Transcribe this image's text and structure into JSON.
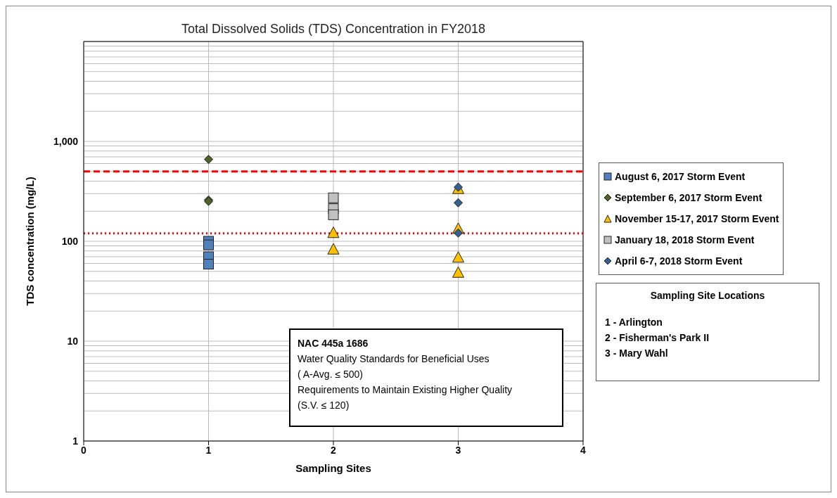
{
  "chart_data": {
    "type": "scatter",
    "title": "Total Dissolved Solids (TDS) Concentration in FY2018",
    "xlabel": "Sampling Sites",
    "ylabel": "TDS concentration (mg/L)",
    "xlim": [
      0,
      4
    ],
    "xticks": [
      0,
      1,
      2,
      3,
      4
    ],
    "ylim": [
      1,
      10000
    ],
    "log": "y",
    "yticks": [
      1,
      {
        "value": 2,
        "label": null
      },
      {
        "value": 3,
        "label": null
      },
      {
        "value": 4,
        "label": null
      },
      {
        "value": 5,
        "label": null
      },
      {
        "value": 6,
        "label": null
      },
      {
        "value": 7,
        "label": null
      },
      {
        "value": 8,
        "label": null
      },
      {
        "value": 9,
        "label": null
      },
      10,
      {
        "value": 20,
        "label": null
      },
      {
        "value": 30,
        "label": null
      },
      {
        "value": 40,
        "label": null
      },
      {
        "value": 50,
        "label": null
      },
      {
        "value": 60,
        "label": null
      },
      {
        "value": 70,
        "label": null
      },
      {
        "value": 80,
        "label": null
      },
      {
        "value": 90,
        "label": null
      },
      100,
      {
        "value": 200,
        "label": null
      },
      {
        "value": 300,
        "label": null
      },
      {
        "value": 400,
        "label": null
      },
      {
        "value": 500,
        "label": null
      },
      {
        "value": 600,
        "label": null
      },
      {
        "value": 700,
        "label": null
      },
      {
        "value": 800,
        "label": null
      },
      {
        "value": 900,
        "label": null
      },
      {
        "value": 1000,
        "label": "1,000"
      },
      {
        "value": 2000,
        "label": null
      },
      {
        "value": 3000,
        "label": null
      },
      {
        "value": 4000,
        "label": null
      },
      {
        "value": 5000,
        "label": null
      },
      {
        "value": 6000,
        "label": null
      },
      {
        "value": 7000,
        "label": null
      },
      {
        "value": 8000,
        "label": null
      },
      {
        "value": 9000,
        "label": null
      },
      {
        "value": 10000,
        "label": null
      }
    ],
    "grid": true,
    "legend": "right",
    "series": [
      {
        "name": "August 6, 2017 Storm Event",
        "color": "#4f81bd",
        "marker": "square",
        "x": [
          1,
          1,
          1,
          1
        ],
        "values": [
          100,
          92,
          70,
          59
        ]
      },
      {
        "name": "September 6, 2017 Storm Event",
        "color": "#4f6228",
        "marker": "diamond",
        "x": [
          1,
          1,
          1
        ],
        "values": [
          660,
          259,
          251
        ]
      },
      {
        "name": "November 15-17, 2017 Storm Event",
        "color": "#ffc000",
        "marker": "triangle",
        "x": [
          2,
          2,
          3,
          3,
          3,
          3
        ],
        "values": [
          120,
          82,
          331,
          132,
          68,
          48
        ]
      },
      {
        "name": "January 18, 2018 Storm Event",
        "color": "#c0c0c0",
        "marker": "square",
        "x": [
          2,
          2,
          2
        ],
        "values": [
          272,
          212,
          184
        ]
      },
      {
        "name": "April 6-7, 2018 Storm Event",
        "color": "#376092",
        "marker": "diamond",
        "x": [
          3,
          3,
          3
        ],
        "values": [
          348,
          243,
          121
        ]
      }
    ],
    "ref_lines": [
      {
        "axis": "y",
        "value": 500,
        "color": "#ff0000",
        "line_style": "dashed"
      },
      {
        "axis": "y",
        "value": 120,
        "color": "#ff0000",
        "line_style": "dotted"
      }
    ],
    "annotations": [
      "NAC 445a 1686",
      "Water Quality Standards for Beneficial Uses",
      "( A-Avg. ≤ 500)",
      "Requirements to Maintain Existing Higher Quality",
      "(S.V. ≤ 120)",
      "Sampling Site Locations",
      "1 - Arlington",
      "2 - Fisherman's Park II",
      "3 - Mary Wahl"
    ]
  }
}
